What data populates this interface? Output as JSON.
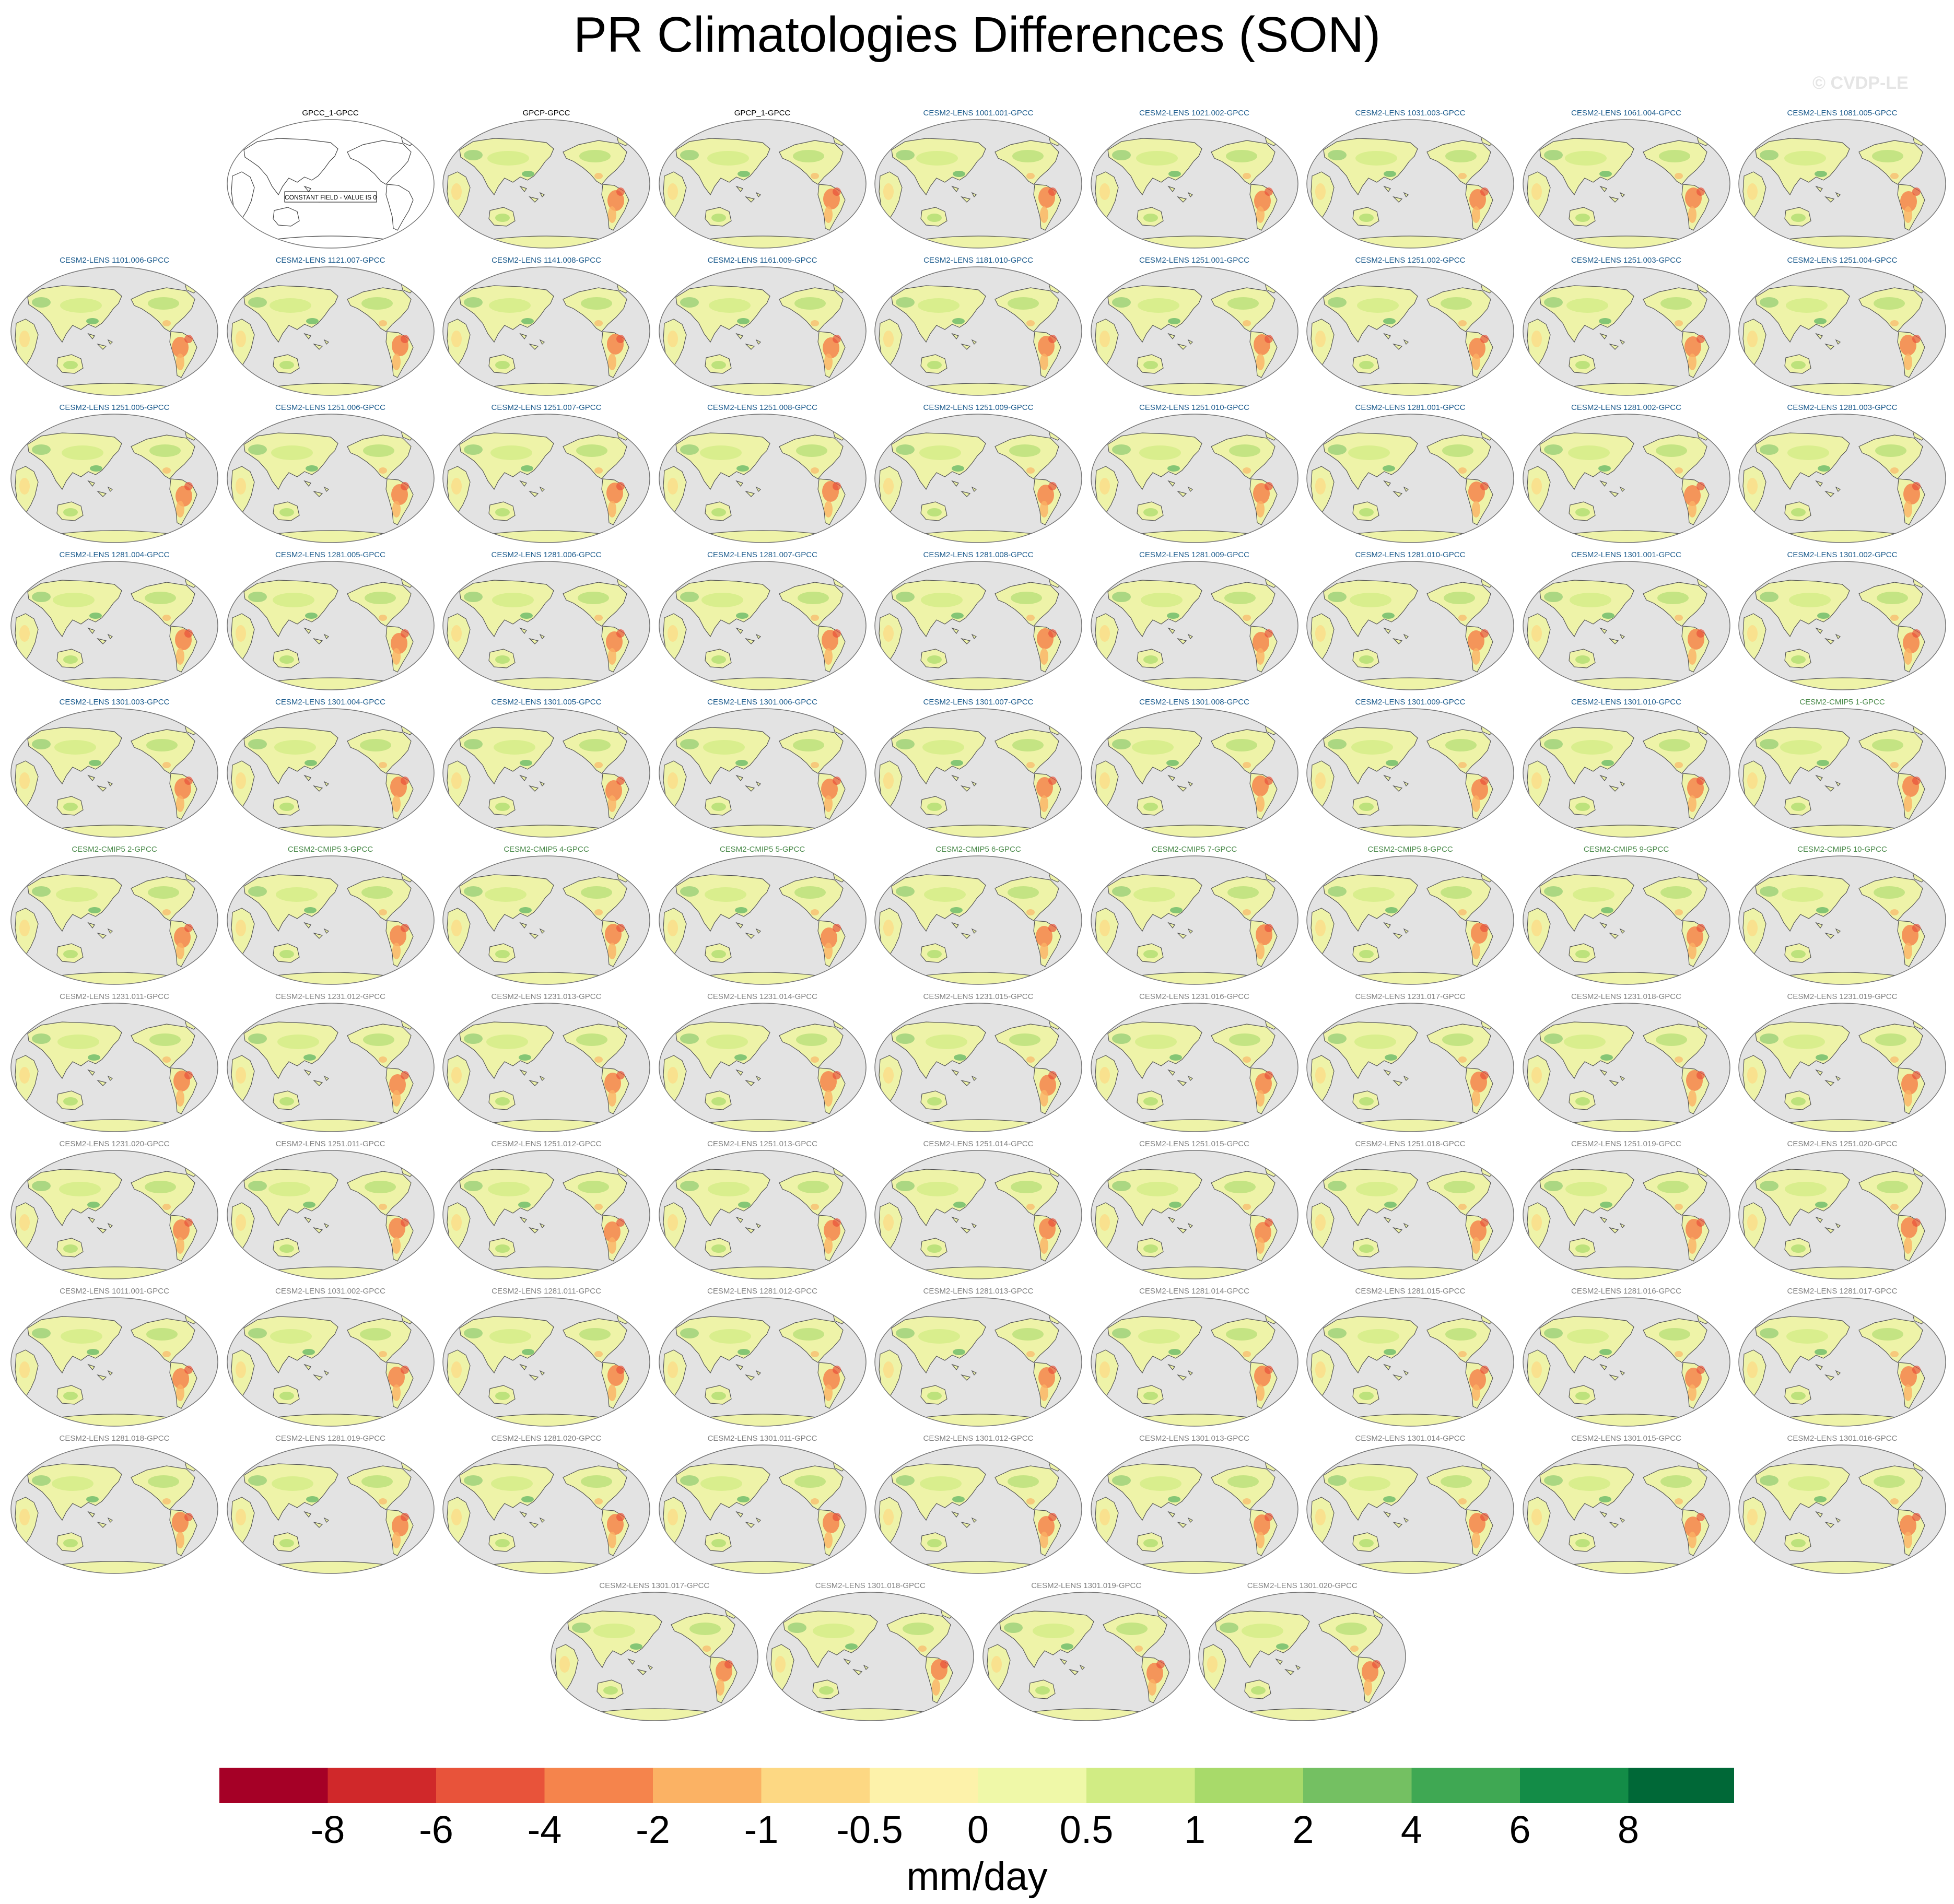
{
  "header": {
    "title": "PR Climatologies Differences (SON)",
    "watermark": "© CVDP-LE"
  },
  "colors": {
    "title_obs": "#000000",
    "title_cesm2_lens": "#1a5a8c",
    "title_cesm2_cmip5": "#4a8a4a",
    "title_cesm2_lens_smbb": "#808080",
    "ocean": "#e3e3e3",
    "coast": "#555555",
    "land_neutral": "#eef3a8"
  },
  "chart_data": {
    "type": "heatmap",
    "projection": "Robinson, centered on Pacific",
    "field": "precipitation climatology difference (SON)",
    "panels": [
      {
        "title": "GPCC_1-GPCC",
        "group": "obs",
        "constant_field": true,
        "annotation": "CONSTANT FIELD - VALUE IS 0"
      },
      {
        "title": "GPCP-GPCC",
        "group": "obs"
      },
      {
        "title": "GPCP_1-GPCC",
        "group": "obs"
      },
      {
        "title": "CESM2-LENS 1001.001-GPCC",
        "group": "lens"
      },
      {
        "title": "CESM2-LENS 1021.002-GPCC",
        "group": "lens"
      },
      {
        "title": "CESM2-LENS 1031.003-GPCC",
        "group": "lens"
      },
      {
        "title": "CESM2-LENS 1061.004-GPCC",
        "group": "lens"
      },
      {
        "title": "CESM2-LENS 1081.005-GPCC",
        "group": "lens"
      },
      {
        "title": "CESM2-LENS 1101.006-GPCC",
        "group": "lens"
      },
      {
        "title": "CESM2-LENS 1121.007-GPCC",
        "group": "lens"
      },
      {
        "title": "CESM2-LENS 1141.008-GPCC",
        "group": "lens"
      },
      {
        "title": "CESM2-LENS 1161.009-GPCC",
        "group": "lens"
      },
      {
        "title": "CESM2-LENS 1181.010-GPCC",
        "group": "lens"
      },
      {
        "title": "CESM2-LENS 1251.001-GPCC",
        "group": "lens"
      },
      {
        "title": "CESM2-LENS 1251.002-GPCC",
        "group": "lens"
      },
      {
        "title": "CESM2-LENS 1251.003-GPCC",
        "group": "lens"
      },
      {
        "title": "CESM2-LENS 1251.004-GPCC",
        "group": "lens"
      },
      {
        "title": "CESM2-LENS 1251.005-GPCC",
        "group": "lens"
      },
      {
        "title": "CESM2-LENS 1251.006-GPCC",
        "group": "lens"
      },
      {
        "title": "CESM2-LENS 1251.007-GPCC",
        "group": "lens"
      },
      {
        "title": "CESM2-LENS 1251.008-GPCC",
        "group": "lens"
      },
      {
        "title": "CESM2-LENS 1251.009-GPCC",
        "group": "lens"
      },
      {
        "title": "CESM2-LENS 1251.010-GPCC",
        "group": "lens"
      },
      {
        "title": "CESM2-LENS 1281.001-GPCC",
        "group": "lens"
      },
      {
        "title": "CESM2-LENS 1281.002-GPCC",
        "group": "lens"
      },
      {
        "title": "CESM2-LENS 1281.003-GPCC",
        "group": "lens"
      },
      {
        "title": "CESM2-LENS 1281.004-GPCC",
        "group": "lens"
      },
      {
        "title": "CESM2-LENS 1281.005-GPCC",
        "group": "lens"
      },
      {
        "title": "CESM2-LENS 1281.006-GPCC",
        "group": "lens"
      },
      {
        "title": "CESM2-LENS 1281.007-GPCC",
        "group": "lens"
      },
      {
        "title": "CESM2-LENS 1281.008-GPCC",
        "group": "lens"
      },
      {
        "title": "CESM2-LENS 1281.009-GPCC",
        "group": "lens"
      },
      {
        "title": "CESM2-LENS 1281.010-GPCC",
        "group": "lens"
      },
      {
        "title": "CESM2-LENS 1301.001-GPCC",
        "group": "lens"
      },
      {
        "title": "CESM2-LENS 1301.002-GPCC",
        "group": "lens"
      },
      {
        "title": "CESM2-LENS 1301.003-GPCC",
        "group": "lens"
      },
      {
        "title": "CESM2-LENS 1301.004-GPCC",
        "group": "lens"
      },
      {
        "title": "CESM2-LENS 1301.005-GPCC",
        "group": "lens"
      },
      {
        "title": "CESM2-LENS 1301.006-GPCC",
        "group": "lens"
      },
      {
        "title": "CESM2-LENS 1301.007-GPCC",
        "group": "lens"
      },
      {
        "title": "CESM2-LENS 1301.008-GPCC",
        "group": "lens"
      },
      {
        "title": "CESM2-LENS 1301.009-GPCC",
        "group": "lens"
      },
      {
        "title": "CESM2-LENS 1301.010-GPCC",
        "group": "lens"
      },
      {
        "title": "CESM2-CMIP5 1-GPCC",
        "group": "cmip5"
      },
      {
        "title": "CESM2-CMIP5 2-GPCC",
        "group": "cmip5"
      },
      {
        "title": "CESM2-CMIP5 3-GPCC",
        "group": "cmip5"
      },
      {
        "title": "CESM2-CMIP5 4-GPCC",
        "group": "cmip5"
      },
      {
        "title": "CESM2-CMIP5 5-GPCC",
        "group": "cmip5"
      },
      {
        "title": "CESM2-CMIP5 6-GPCC",
        "group": "cmip5"
      },
      {
        "title": "CESM2-CMIP5 7-GPCC",
        "group": "cmip5"
      },
      {
        "title": "CESM2-CMIP5 8-GPCC",
        "group": "cmip5"
      },
      {
        "title": "CESM2-CMIP5 9-GPCC",
        "group": "cmip5"
      },
      {
        "title": "CESM2-CMIP5 10-GPCC",
        "group": "cmip5"
      },
      {
        "title": "CESM2-LENS 1231.011-GPCC",
        "group": "smbb"
      },
      {
        "title": "CESM2-LENS 1231.012-GPCC",
        "group": "smbb"
      },
      {
        "title": "CESM2-LENS 1231.013-GPCC",
        "group": "smbb"
      },
      {
        "title": "CESM2-LENS 1231.014-GPCC",
        "group": "smbb"
      },
      {
        "title": "CESM2-LENS 1231.015-GPCC",
        "group": "smbb"
      },
      {
        "title": "CESM2-LENS 1231.016-GPCC",
        "group": "smbb"
      },
      {
        "title": "CESM2-LENS 1231.017-GPCC",
        "group": "smbb"
      },
      {
        "title": "CESM2-LENS 1231.018-GPCC",
        "group": "smbb"
      },
      {
        "title": "CESM2-LENS 1231.019-GPCC",
        "group": "smbb"
      },
      {
        "title": "CESM2-LENS 1231.020-GPCC",
        "group": "smbb"
      },
      {
        "title": "CESM2-LENS 1251.011-GPCC",
        "group": "smbb"
      },
      {
        "title": "CESM2-LENS 1251.012-GPCC",
        "group": "smbb"
      },
      {
        "title": "CESM2-LENS 1251.013-GPCC",
        "group": "smbb"
      },
      {
        "title": "CESM2-LENS 1251.014-GPCC",
        "group": "smbb"
      },
      {
        "title": "CESM2-LENS 1251.015-GPCC",
        "group": "smbb"
      },
      {
        "title": "CESM2-LENS 1251.018-GPCC",
        "group": "smbb"
      },
      {
        "title": "CESM2-LENS 1251.019-GPCC",
        "group": "smbb"
      },
      {
        "title": "CESM2-LENS 1251.020-GPCC",
        "group": "smbb"
      },
      {
        "title": "CESM2-LENS 1011.001-GPCC",
        "group": "smbb"
      },
      {
        "title": "CESM2-LENS 1031.002-GPCC",
        "group": "smbb"
      },
      {
        "title": "CESM2-LENS 1281.011-GPCC",
        "group": "smbb"
      },
      {
        "title": "CESM2-LENS 1281.012-GPCC",
        "group": "smbb"
      },
      {
        "title": "CESM2-LENS 1281.013-GPCC",
        "group": "smbb"
      },
      {
        "title": "CESM2-LENS 1281.014-GPCC",
        "group": "smbb"
      },
      {
        "title": "CESM2-LENS 1281.015-GPCC",
        "group": "smbb"
      },
      {
        "title": "CESM2-LENS 1281.016-GPCC",
        "group": "smbb"
      },
      {
        "title": "CESM2-LENS 1281.017-GPCC",
        "group": "smbb"
      },
      {
        "title": "CESM2-LENS 1281.018-GPCC",
        "group": "smbb"
      },
      {
        "title": "CESM2-LENS 1281.019-GPCC",
        "group": "smbb"
      },
      {
        "title": "CESM2-LENS 1281.020-GPCC",
        "group": "smbb"
      },
      {
        "title": "CESM2-LENS 1301.011-GPCC",
        "group": "smbb"
      },
      {
        "title": "CESM2-LENS 1301.012-GPCC",
        "group": "smbb"
      },
      {
        "title": "CESM2-LENS 1301.013-GPCC",
        "group": "smbb"
      },
      {
        "title": "CESM2-LENS 1301.014-GPCC",
        "group": "smbb"
      },
      {
        "title": "CESM2-LENS 1301.015-GPCC",
        "group": "smbb"
      },
      {
        "title": "CESM2-LENS 1301.016-GPCC",
        "group": "smbb"
      },
      {
        "title": "CESM2-LENS 1301.017-GPCC",
        "group": "smbb"
      },
      {
        "title": "CESM2-LENS 1301.018-GPCC",
        "group": "smbb"
      },
      {
        "title": "CESM2-LENS 1301.019-GPCC",
        "group": "smbb"
      },
      {
        "title": "CESM2-LENS 1301.020-GPCC",
        "group": "smbb"
      }
    ],
    "colorbar": {
      "levels": [
        -8,
        -6,
        -4,
        -2,
        -1,
        -0.5,
        0,
        0.5,
        1,
        2,
        4,
        6,
        8
      ],
      "tick_labels": [
        "-8",
        "-6",
        "-4",
        "-2",
        "-1",
        "-0.5",
        "0",
        "0.5",
        "1",
        "2",
        "4",
        "6",
        "8"
      ],
      "colors": [
        "#a50026",
        "#d0282a",
        "#e8533a",
        "#f5844c",
        "#fbb264",
        "#fdd883",
        "#fdf2aa",
        "#eff8a8",
        "#d1ec84",
        "#a8da6a",
        "#74c062",
        "#3fa853",
        "#138c47",
        "#006837"
      ],
      "units": "mm/day"
    }
  }
}
